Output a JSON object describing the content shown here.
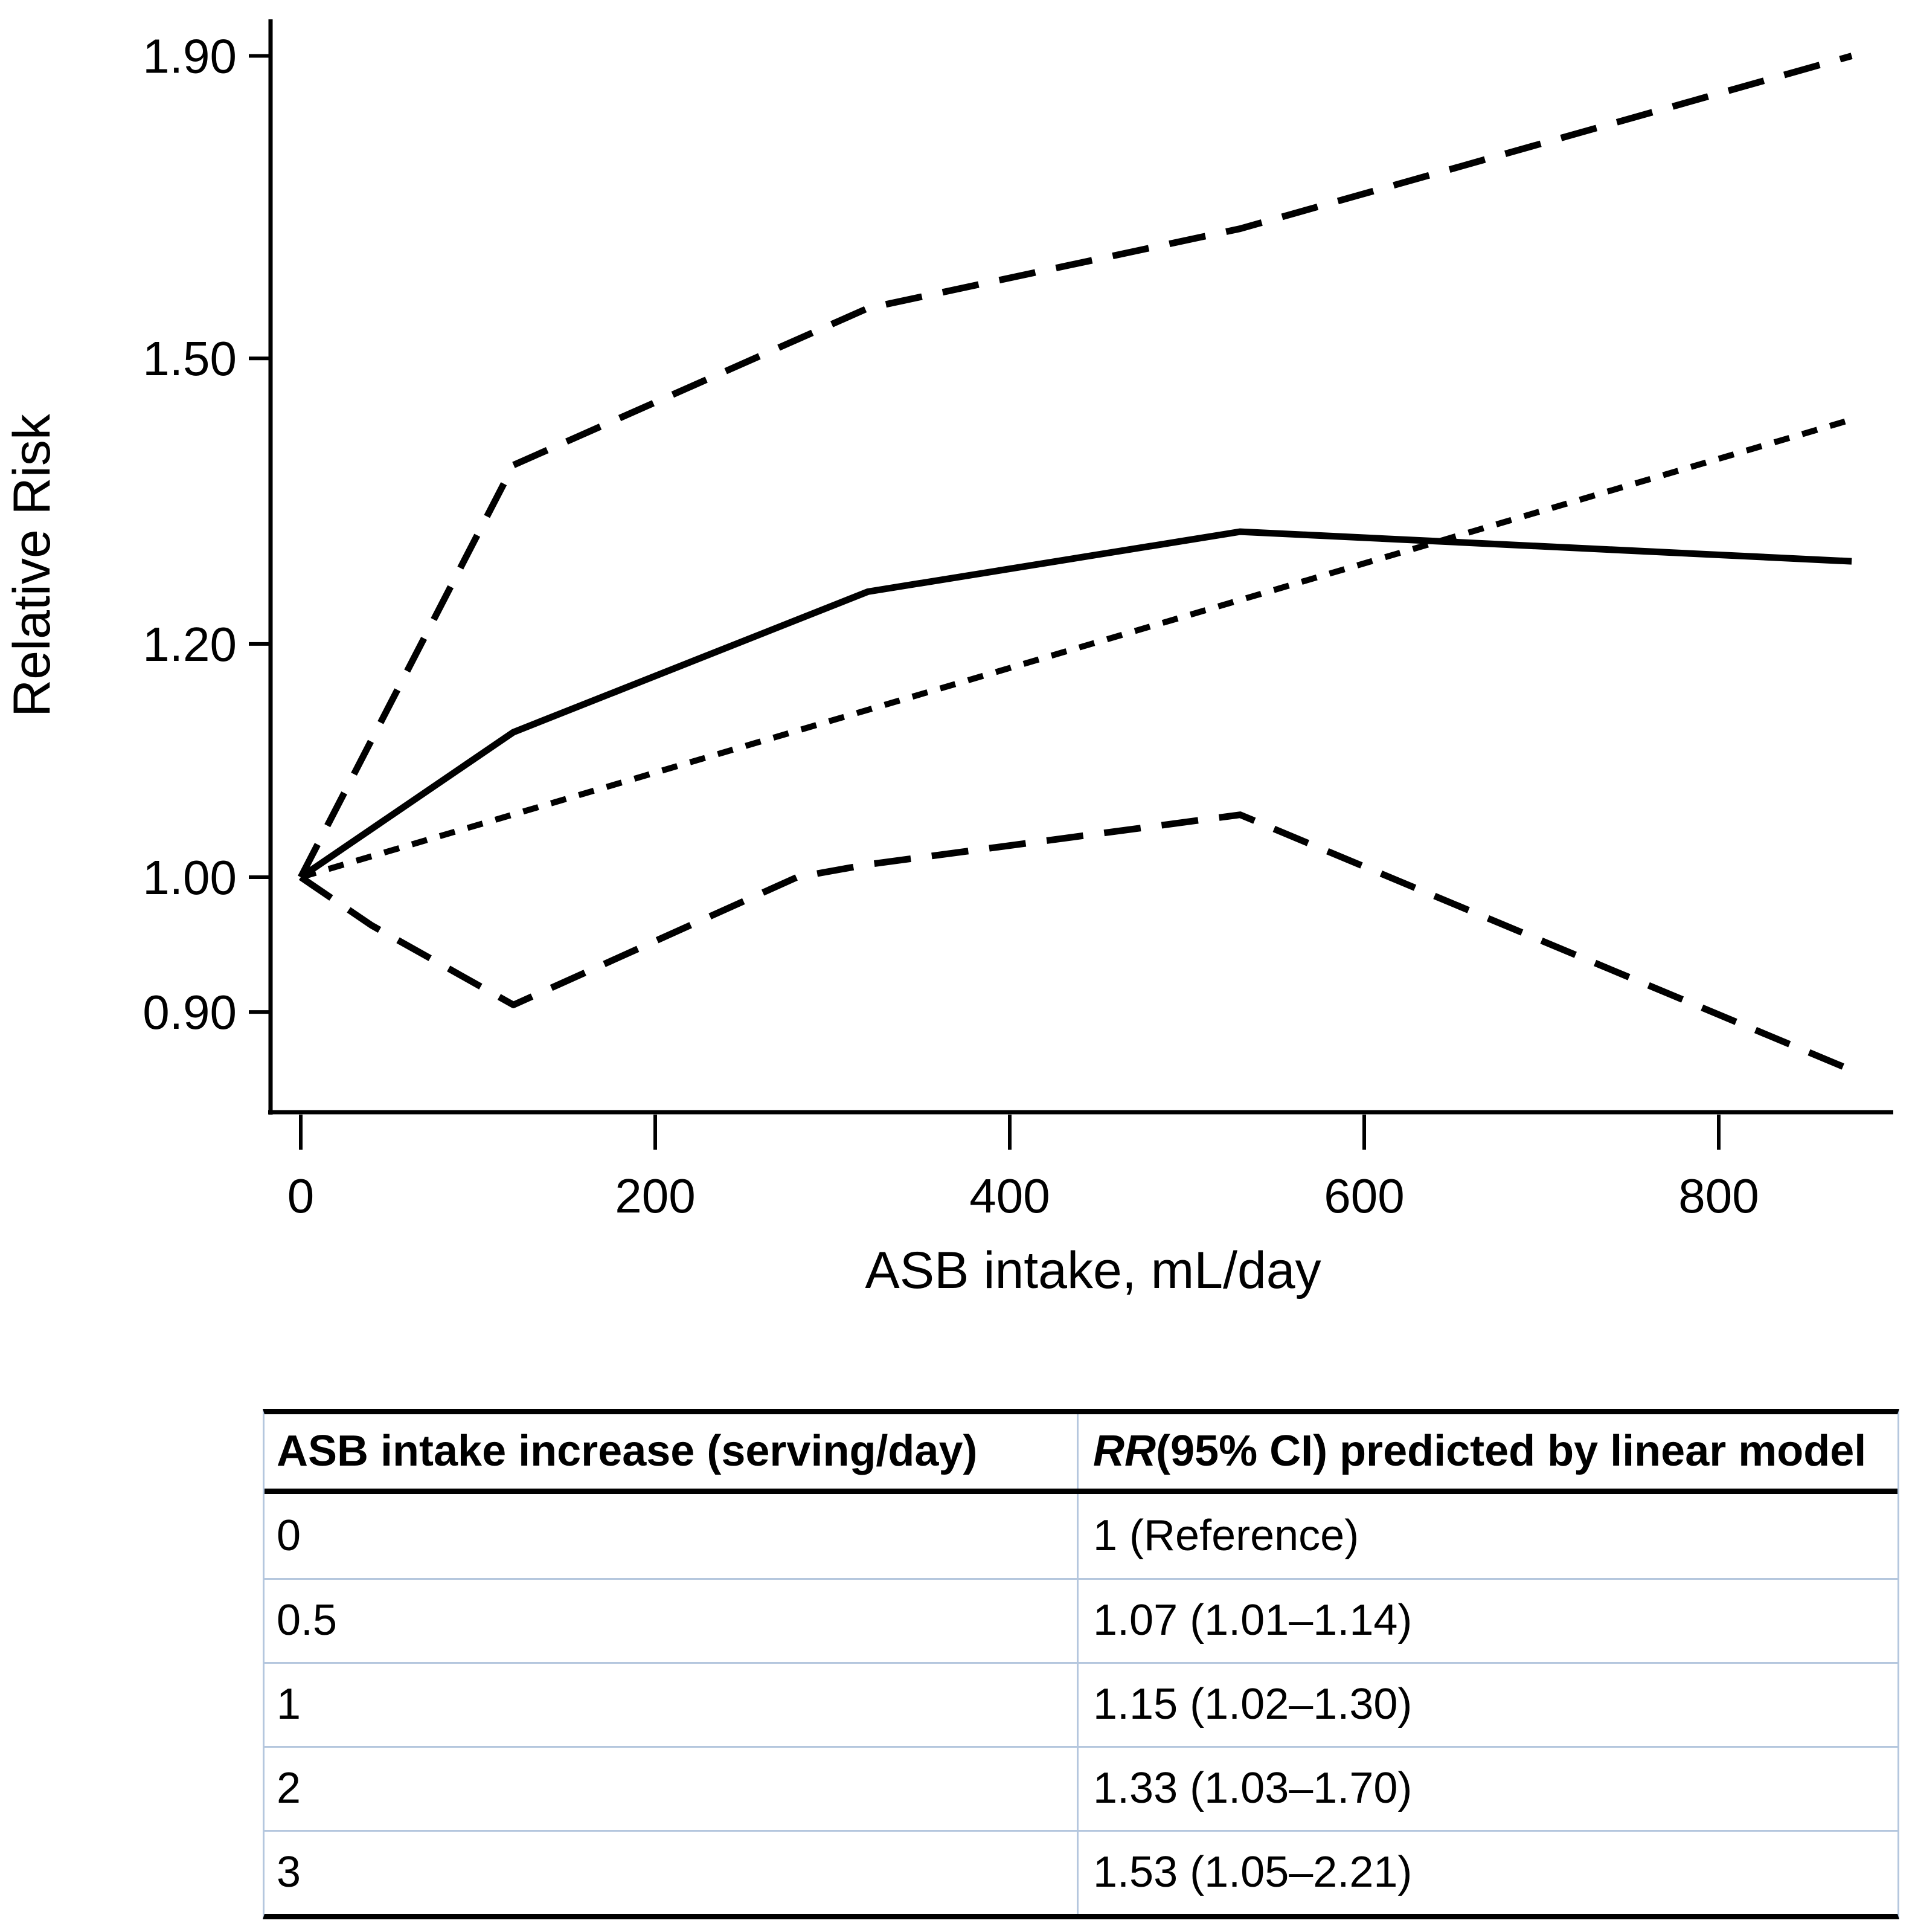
{
  "colors": {
    "line": "#000000",
    "table_grid": "#b5c7de",
    "background": "#ffffff",
    "text": "#000000"
  },
  "chart_data": {
    "type": "line",
    "title": "",
    "xlabel": "ASB intake, mL/day",
    "ylabel": "Relative Risk",
    "x_ticks": [
      "0",
      "200",
      "400",
      "600",
      "800"
    ],
    "y_ticks": [
      "0.90",
      "1.00",
      "1.20",
      "1.50",
      "1.90"
    ],
    "y_scale": "log",
    "xlim": [
      0,
      915
    ],
    "ylim": [
      0.82,
      1.95
    ],
    "grid": "off",
    "legend": "none",
    "series": [
      {
        "name": "spline_rr",
        "style": "solid",
        "x": [
          0,
          120,
          320,
          530,
          875
        ],
        "y": [
          1.0,
          1.12,
          1.25,
          1.31,
          1.28
        ]
      },
      {
        "name": "ci_upper",
        "style": "long-dash",
        "x": [
          0,
          120,
          320,
          530,
          875
        ],
        "y": [
          1.0,
          1.38,
          1.56,
          1.66,
          1.9
        ]
      },
      {
        "name": "ci_lower",
        "style": "long-dash",
        "x": [
          0,
          40,
          120,
          280,
          320,
          530,
          875
        ],
        "y": [
          1.0,
          0.963,
          0.905,
          1.0,
          1.01,
          1.05,
          0.86
        ]
      },
      {
        "name": "linear_model",
        "style": "short-dash",
        "x": [
          0,
          875
        ],
        "y": [
          1.0,
          1.43
        ]
      }
    ]
  },
  "table": {
    "header": {
      "col1": "ASB intake increase (serving/day)",
      "col2_italic": "RR",
      "col2_rest": " (95% CI) predicted by linear model"
    },
    "rows": [
      {
        "intake": "0",
        "rr": "1 (Reference)"
      },
      {
        "intake": "0.5",
        "rr": "1.07 (1.01–1.14)"
      },
      {
        "intake": "1",
        "rr": "1.15 (1.02–1.30)"
      },
      {
        "intake": "2",
        "rr": "1.33 (1.03–1.70)"
      },
      {
        "intake": "3",
        "rr": "1.53 (1.05–2.21)"
      }
    ]
  }
}
